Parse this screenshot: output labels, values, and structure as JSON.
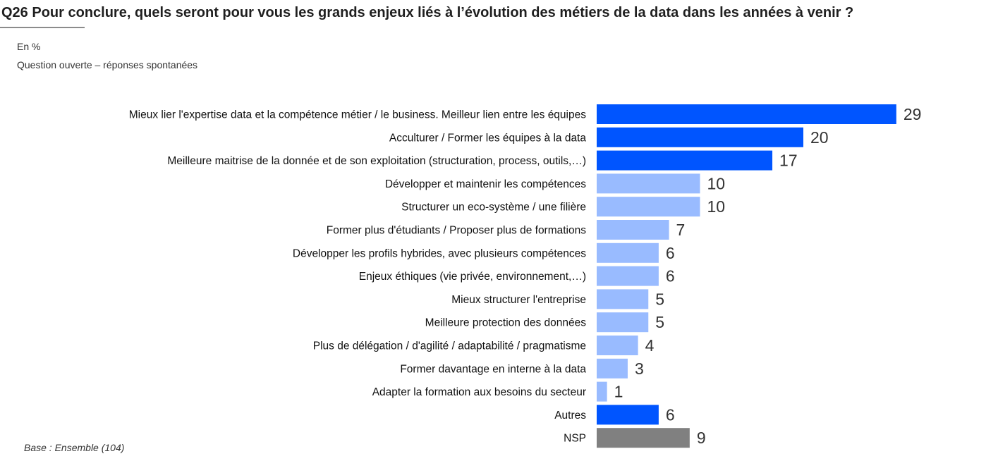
{
  "header": {
    "title": "Q26 Pour conclure, quels seront pour vous les grands enjeux liés à l’évolution des métiers de la data dans les années à venir ?",
    "unit": "En %",
    "subtitle": "Question ouverte – réponses spontanées"
  },
  "footer": {
    "base": "Base : Ensemble (104)"
  },
  "colors": {
    "primary": "#0055ff",
    "light": "#99bbff",
    "neutral": "#808080"
  },
  "chart_data": {
    "type": "bar",
    "orientation": "horizontal",
    "title": "Q26 Pour conclure, quels seront pour vous les grands enjeux liés à l’évolution des métiers de la data dans les années à venir ?",
    "xlabel": "",
    "ylabel": "",
    "unit": "%",
    "xlim": [
      0,
      29
    ],
    "categories": [
      "Mieux lier l'expertise data et la compétence métier / le business. Meilleur lien entre les équipes",
      "Acculturer / Former les équipes à la data",
      "Meilleure maitrise de la donnée et de son exploitation (structuration, process, outils,…)",
      "Développer et maintenir les compétences",
      "Structurer un eco-système / une filière",
      "Former plus d'étudiants / Proposer plus de formations",
      "Développer les profils hybrides, avec plusieurs compétences",
      "Enjeux éthiques (vie privée, environnement,…)",
      "Mieux structurer l'entreprise",
      "Meilleure protection des données",
      "Plus de délégation / d'agilité / adaptabilité / pragmatisme",
      "Former davantage en interne à la data",
      "Adapter la formation aux besoins du secteur",
      "Autres",
      "NSP"
    ],
    "values": [
      29,
      20,
      17,
      10,
      10,
      7,
      6,
      6,
      5,
      5,
      4,
      3,
      1,
      6,
      9
    ],
    "color_keys": [
      "primary",
      "primary",
      "primary",
      "light",
      "light",
      "light",
      "light",
      "light",
      "light",
      "light",
      "light",
      "light",
      "light",
      "primary",
      "neutral"
    ]
  }
}
